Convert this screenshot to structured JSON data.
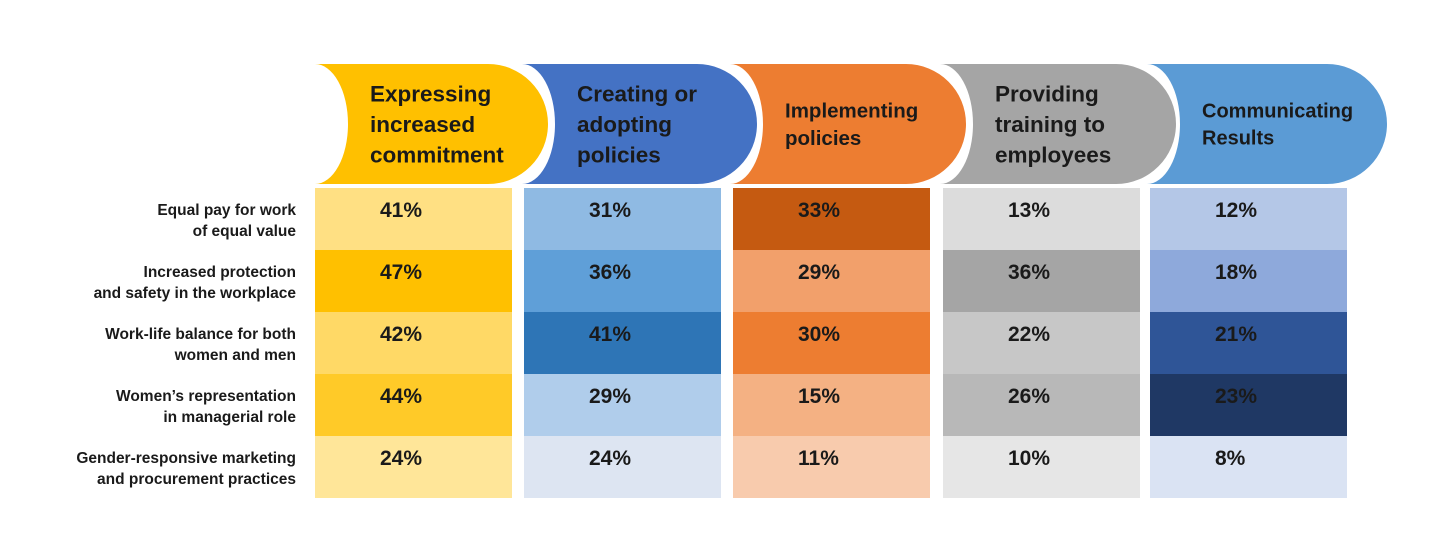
{
  "chart_data": {
    "type": "heatmap",
    "columns": [
      {
        "label": [
          "Expressing",
          "increased",
          "commitment"
        ],
        "color": "#FFC000",
        "text_color": "#1a1a1a"
      },
      {
        "label": [
          "Creating or",
          "adopting",
          "policies"
        ],
        "color": "#4472C4",
        "text_color": "#1a1a1a"
      },
      {
        "label": [
          "Implementing",
          "policies"
        ],
        "color": "#ED7D31",
        "text_color": "#1a1a1a"
      },
      {
        "label": [
          "Providing",
          "training to",
          "employees"
        ],
        "color": "#A5A5A5",
        "text_color": "#1a1a1a"
      },
      {
        "label": [
          "Communicating",
          "Results"
        ],
        "color": "#5B9BD5",
        "text_color": "#1a1a1a"
      }
    ],
    "rows": [
      [
        "Equal pay for work",
        "of equal value"
      ],
      [
        "Increased protection",
        "and safety in the workplace"
      ],
      [
        "Work-life balance for both",
        "women and men"
      ],
      [
        "Women’s representation",
        "in managerial role"
      ],
      [
        "Gender-responsive marketing",
        "and procurement practices"
      ]
    ],
    "values": [
      [
        41,
        31,
        33,
        13,
        12
      ],
      [
        47,
        36,
        29,
        36,
        18
      ],
      [
        42,
        41,
        30,
        22,
        21
      ],
      [
        44,
        29,
        15,
        26,
        23
      ],
      [
        24,
        24,
        11,
        10,
        8
      ]
    ],
    "value_suffix": "%",
    "cell_colors": [
      [
        "#FFE083",
        "#8FBAE3",
        "#C55A11",
        "#DCDCDC",
        "#B4C7E7"
      ],
      [
        "#FFC000",
        "#5F9FD8",
        "#F2A06B",
        "#A5A5A5",
        "#8EA9DB"
      ],
      [
        "#FFD966",
        "#2E75B6",
        "#ED7D31",
        "#C7C7C7",
        "#2F5597"
      ],
      [
        "#FFCA28",
        "#B0CDEB",
        "#F4B183",
        "#B8B8B8",
        "#1F3864"
      ],
      [
        "#FFE699",
        "#DDE5F2",
        "#F8CBAD",
        "#E6E6E6",
        "#DAE3F3"
      ]
    ],
    "cell_text_colors": [
      [
        "#1a1a1a",
        "#1a1a1a",
        "#1a1a1a",
        "#1a1a1a",
        "#1a1a1a"
      ],
      [
        "#1a1a1a",
        "#1a1a1a",
        "#1a1a1a",
        "#1a1a1a",
        "#1a1a1a"
      ],
      [
        "#1a1a1a",
        "#1a1a1a",
        "#1a1a1a",
        "#1a1a1a",
        "#ffffff"
      ],
      [
        "#1a1a1a",
        "#1a1a1a",
        "#1a1a1a",
        "#1a1a1a",
        "#ffffff"
      ],
      [
        "#1a1a1a",
        "#1a1a1a",
        "#1a1a1a",
        "#1a1a1a",
        "#1a1a1a"
      ]
    ]
  }
}
